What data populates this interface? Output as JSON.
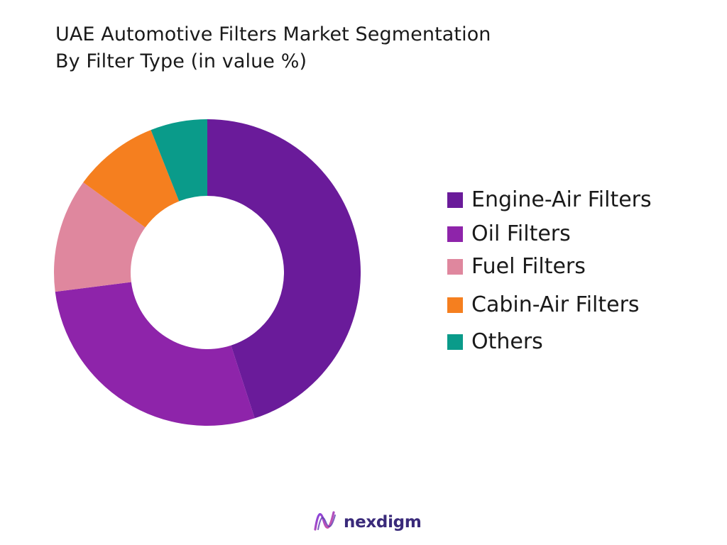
{
  "title_line1": "UAE Automotive Filters Market Segmentation",
  "title_line2": "By Filter Type (in value %)",
  "chart_data": {
    "type": "pie",
    "variant": "donut",
    "title": "UAE Automotive Filters Market Segmentation By Filter Type (in value %)",
    "categories": [
      "Engine-Air Filters",
      "Oil Filters",
      "Fuel Filters",
      "Cabin-Air Filters",
      "Others"
    ],
    "values": [
      45,
      28,
      12,
      9,
      6
    ],
    "colors": [
      "#6a1b9a",
      "#8e24aa",
      "#df879e",
      "#f57f1f",
      "#0a9b8a"
    ],
    "legend_position": "right"
  },
  "legend": {
    "items": [
      {
        "label": "Engine-Air Filters",
        "color": "#6a1b9a"
      },
      {
        "label": "Oil Filters",
        "color": "#8e24aa"
      },
      {
        "label": "Fuel Filters",
        "color": "#df879e"
      },
      {
        "label": "Cabin-Air Filters",
        "color": "#f57f1f"
      },
      {
        "label": "Others",
        "color": "#0a9b8a"
      }
    ]
  },
  "brand": {
    "name": "nexdigm",
    "logo_icon": "nexdigm-logo-icon"
  }
}
